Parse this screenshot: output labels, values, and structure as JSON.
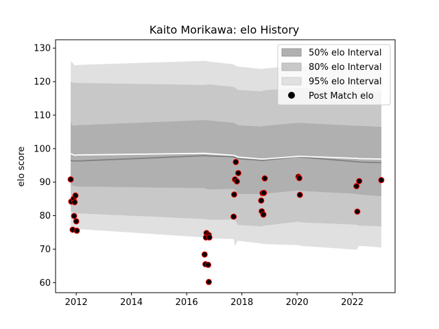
{
  "chart_data": {
    "type": "line",
    "title": "Kaito Morikawa: elo History",
    "xlabel": "",
    "ylabel": "elo score",
    "xlim": [
      2011.25,
      2023.55
    ],
    "ylim": [
      57,
      132.5
    ],
    "x_ticks": [
      2012,
      2014,
      2016,
      2018,
      2020,
      2022
    ],
    "y_ticks": [
      60,
      70,
      80,
      90,
      100,
      110,
      120,
      130
    ],
    "grid": false,
    "legend_position": "top-right",
    "legend": [
      {
        "label": "50% elo Interval",
        "color": "#b0b0b0"
      },
      {
        "label": "80% elo Interval",
        "color": "#c8c8c8"
      },
      {
        "label": "95% elo Interval",
        "color": "#e0e0e0"
      },
      {
        "label": "Post Match elo",
        "color": "#000000"
      }
    ],
    "bands": {
      "x": [
        2011.8,
        2011.85,
        2011.95,
        2012.05,
        2016.65,
        2016.8,
        2017.7,
        2017.75,
        2017.85,
        2018.7,
        2018.8,
        2020.05,
        2020.1,
        2022.15,
        2022.25,
        2023.05
      ],
      "mean": [
        98.5,
        98.3,
        98.0,
        98.1,
        98.6,
        98.5,
        98.0,
        97.9,
        97.5,
        96.9,
        96.9,
        97.7,
        97.7,
        97.1,
        97.0,
        96.9
      ],
      "lower_line": [
        96.5,
        96.4,
        96.3,
        96.3,
        97.9,
        97.8,
        97.6,
        97.3,
        97.0,
        96.5,
        96.5,
        97.6,
        97.5,
        96.1,
        96.0,
        95.8
      ],
      "p50": {
        "low": [
          89.5,
          89.0,
          88.8,
          88.7,
          88.2,
          87.8,
          88.0,
          87.8,
          86.5,
          86.4,
          86.5,
          87.5,
          87.4,
          86.5,
          86.3,
          85.8
        ],
        "high": [
          108,
          107,
          106.8,
          107,
          108.5,
          108.4,
          107.7,
          107.5,
          107.0,
          106.6,
          106.8,
          107.7,
          107.7,
          106.8,
          106.8,
          106.5
        ]
      },
      "p80": {
        "low": [
          81.5,
          81.0,
          80.8,
          80.7,
          79.0,
          78.8,
          78.8,
          78.6,
          77.2,
          76.8,
          77.0,
          78.2,
          78.0,
          77.3,
          77.0,
          76.8
        ],
        "high": [
          120,
          119.8,
          119.6,
          119.6,
          119.0,
          119.2,
          118.4,
          118.2,
          117.5,
          117.1,
          117.4,
          118.2,
          118.1,
          117.3,
          117.0,
          116.8
        ]
      },
      "p95": {
        "low": [
          76.5,
          76.2,
          76.0,
          76.0,
          73.5,
          73.2,
          73.0,
          71.0,
          72.5,
          71.7,
          71.5,
          71.2,
          71.0,
          69.8,
          71.0,
          70.5
        ],
        "high": [
          126,
          125.8,
          124.8,
          125.0,
          126.2,
          126.0,
          125.2,
          124.8,
          124.5,
          123.8,
          123.9,
          124.8,
          124.8,
          124.0,
          123.8,
          123.5
        ]
      }
    },
    "points": [
      {
        "x": 2011.8,
        "y": 90.8
      },
      {
        "x": 2011.82,
        "y": 84.2
      },
      {
        "x": 2011.87,
        "y": 75.8
      },
      {
        "x": 2011.9,
        "y": 85.0
      },
      {
        "x": 2011.92,
        "y": 79.9
      },
      {
        "x": 2011.94,
        "y": 84.0
      },
      {
        "x": 2011.97,
        "y": 86.0
      },
      {
        "x": 2012.0,
        "y": 78.3
      },
      {
        "x": 2012.02,
        "y": 75.5
      },
      {
        "x": 2016.65,
        "y": 68.4
      },
      {
        "x": 2016.68,
        "y": 65.5
      },
      {
        "x": 2016.7,
        "y": 73.5
      },
      {
        "x": 2016.72,
        "y": 74.8
      },
      {
        "x": 2016.78,
        "y": 65.3
      },
      {
        "x": 2016.8,
        "y": 74.2
      },
      {
        "x": 2016.82,
        "y": 73.5
      },
      {
        "x": 2016.8,
        "y": 60.2
      },
      {
        "x": 2017.7,
        "y": 79.7
      },
      {
        "x": 2017.72,
        "y": 86.3
      },
      {
        "x": 2017.75,
        "y": 90.8
      },
      {
        "x": 2017.78,
        "y": 96.0
      },
      {
        "x": 2017.82,
        "y": 90.2
      },
      {
        "x": 2017.87,
        "y": 92.7
      },
      {
        "x": 2018.7,
        "y": 84.5
      },
      {
        "x": 2018.72,
        "y": 81.3
      },
      {
        "x": 2018.75,
        "y": 86.7
      },
      {
        "x": 2018.78,
        "y": 80.3
      },
      {
        "x": 2018.8,
        "y": 86.8
      },
      {
        "x": 2018.83,
        "y": 91.1
      },
      {
        "x": 2020.05,
        "y": 91.6
      },
      {
        "x": 2020.08,
        "y": 91.2
      },
      {
        "x": 2020.1,
        "y": 86.2
      },
      {
        "x": 2022.15,
        "y": 88.8
      },
      {
        "x": 2022.18,
        "y": 81.2
      },
      {
        "x": 2022.25,
        "y": 90.3
      },
      {
        "x": 2023.05,
        "y": 90.6
      }
    ]
  }
}
